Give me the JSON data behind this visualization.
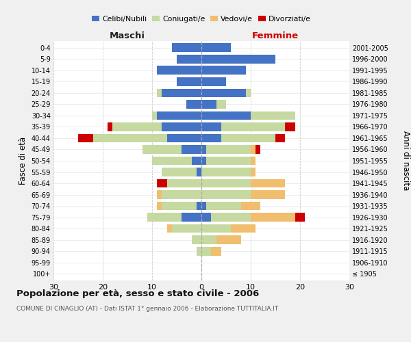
{
  "age_groups": [
    "100+",
    "95-99",
    "90-94",
    "85-89",
    "80-84",
    "75-79",
    "70-74",
    "65-69",
    "60-64",
    "55-59",
    "50-54",
    "45-49",
    "40-44",
    "35-39",
    "30-34",
    "25-29",
    "20-24",
    "15-19",
    "10-14",
    "5-9",
    "0-4"
  ],
  "birth_years": [
    "≤ 1905",
    "1906-1910",
    "1911-1915",
    "1916-1920",
    "1921-1925",
    "1926-1930",
    "1931-1935",
    "1936-1940",
    "1941-1945",
    "1946-1950",
    "1951-1955",
    "1956-1960",
    "1961-1965",
    "1966-1970",
    "1971-1975",
    "1976-1980",
    "1981-1985",
    "1986-1990",
    "1991-1995",
    "1996-2000",
    "2001-2005"
  ],
  "male": {
    "celibe": [
      0,
      0,
      0,
      0,
      0,
      4,
      1,
      0,
      0,
      1,
      2,
      4,
      7,
      8,
      9,
      3,
      8,
      5,
      9,
      5,
      6
    ],
    "coniugato": [
      0,
      0,
      1,
      2,
      6,
      7,
      7,
      8,
      7,
      7,
      8,
      8,
      15,
      10,
      1,
      0,
      1,
      0,
      0,
      0,
      0
    ],
    "vedovo": [
      0,
      0,
      0,
      0,
      1,
      0,
      1,
      1,
      0,
      0,
      0,
      0,
      0,
      0,
      0,
      0,
      0,
      0,
      0,
      0,
      0
    ],
    "divorziato": [
      0,
      0,
      0,
      0,
      0,
      0,
      0,
      0,
      2,
      0,
      0,
      0,
      3,
      1,
      0,
      0,
      0,
      0,
      0,
      0,
      0
    ]
  },
  "female": {
    "nubile": [
      0,
      0,
      0,
      0,
      0,
      2,
      1,
      0,
      0,
      0,
      1,
      1,
      4,
      4,
      10,
      3,
      9,
      5,
      9,
      15,
      6
    ],
    "coniugata": [
      0,
      0,
      2,
      3,
      6,
      8,
      7,
      10,
      10,
      10,
      9,
      9,
      11,
      13,
      9,
      2,
      1,
      0,
      0,
      0,
      0
    ],
    "vedova": [
      0,
      0,
      2,
      5,
      5,
      9,
      4,
      7,
      7,
      1,
      1,
      1,
      0,
      0,
      0,
      0,
      0,
      0,
      0,
      0,
      0
    ],
    "divorziata": [
      0,
      0,
      0,
      0,
      0,
      2,
      0,
      0,
      0,
      0,
      0,
      1,
      2,
      2,
      0,
      0,
      0,
      0,
      0,
      0,
      0
    ]
  },
  "colors": {
    "celibe": "#4472C4",
    "coniugato": "#C5D9A0",
    "vedovo": "#F0BE6E",
    "divorziato": "#CC0000"
  },
  "xlim": 30,
  "title": "Popolazione per età, sesso e stato civile - 2006",
  "subtitle": "COMUNE DI CINAGLIO (AT) - Dati ISTAT 1° gennaio 2006 - Elaborazione TUTTITALIA.IT",
  "ylabel_left": "Fasce di età",
  "ylabel_right": "Anni di nascita",
  "xlabel_left": "Maschi",
  "xlabel_right": "Femmine",
  "bg_color": "#f0f0f0",
  "plot_bg": "#ffffff",
  "legend_labels": [
    "Celibi/Nubili",
    "Coniugati/e",
    "Vedovi/e",
    "Divorziati/e"
  ]
}
